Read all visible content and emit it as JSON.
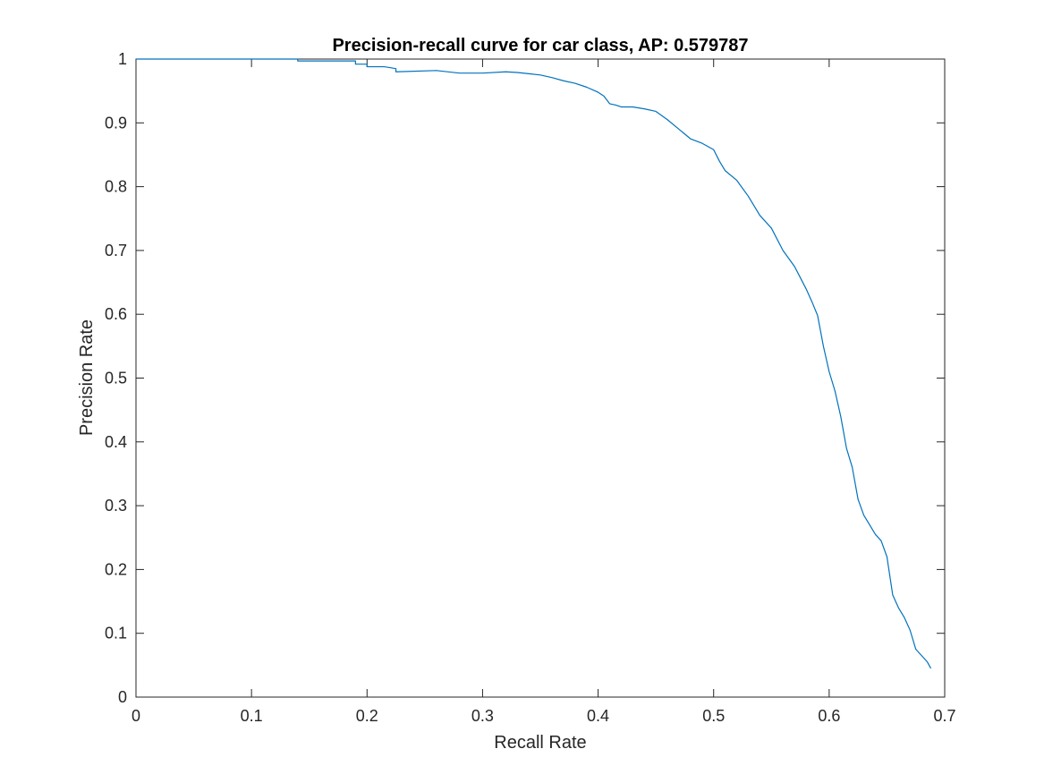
{
  "chart_data": {
    "type": "line",
    "title": "Precision-recall curve for car class, AP: 0.579787",
    "xlabel": "Recall Rate",
    "ylabel": "Precision Rate",
    "xlim": [
      0,
      0.7
    ],
    "ylim": [
      0,
      1
    ],
    "xticks": [
      "0",
      "0.1",
      "0.2",
      "0.3",
      "0.4",
      "0.5",
      "0.6",
      "0.7"
    ],
    "yticks": [
      "0",
      "0.1",
      "0.2",
      "0.3",
      "0.4",
      "0.5",
      "0.6",
      "0.7",
      "0.8",
      "0.9",
      "1"
    ],
    "grid": false,
    "line_color": "#0072BD",
    "series": [
      {
        "x": [
          0.0,
          0.14,
          0.14,
          0.19,
          0.19,
          0.2,
          0.2,
          0.215,
          0.225,
          0.225,
          0.26,
          0.28,
          0.3,
          0.32,
          0.33,
          0.34,
          0.35,
          0.36,
          0.37,
          0.38,
          0.39,
          0.4,
          0.405,
          0.41,
          0.415,
          0.42,
          0.43,
          0.44,
          0.45,
          0.46,
          0.47,
          0.48,
          0.49,
          0.5,
          0.505,
          0.51,
          0.52,
          0.53,
          0.54,
          0.55,
          0.56,
          0.57,
          0.58,
          0.585,
          0.59,
          0.595,
          0.6,
          0.605,
          0.61,
          0.615,
          0.62,
          0.625,
          0.63,
          0.635,
          0.64,
          0.645,
          0.65,
          0.655,
          0.66,
          0.665,
          0.67,
          0.675,
          0.68,
          0.685,
          0.688
        ],
        "y": [
          1.0,
          1.0,
          0.997,
          0.997,
          0.992,
          0.992,
          0.988,
          0.988,
          0.985,
          0.98,
          0.982,
          0.978,
          0.978,
          0.98,
          0.979,
          0.977,
          0.975,
          0.971,
          0.966,
          0.962,
          0.956,
          0.948,
          0.942,
          0.93,
          0.928,
          0.925,
          0.925,
          0.922,
          0.918,
          0.905,
          0.89,
          0.875,
          0.868,
          0.858,
          0.84,
          0.825,
          0.81,
          0.785,
          0.755,
          0.735,
          0.7,
          0.675,
          0.64,
          0.62,
          0.598,
          0.55,
          0.51,
          0.48,
          0.44,
          0.39,
          0.36,
          0.31,
          0.285,
          0.27,
          0.255,
          0.245,
          0.22,
          0.16,
          0.14,
          0.125,
          0.105,
          0.075,
          0.065,
          0.055,
          0.045
        ]
      }
    ]
  }
}
